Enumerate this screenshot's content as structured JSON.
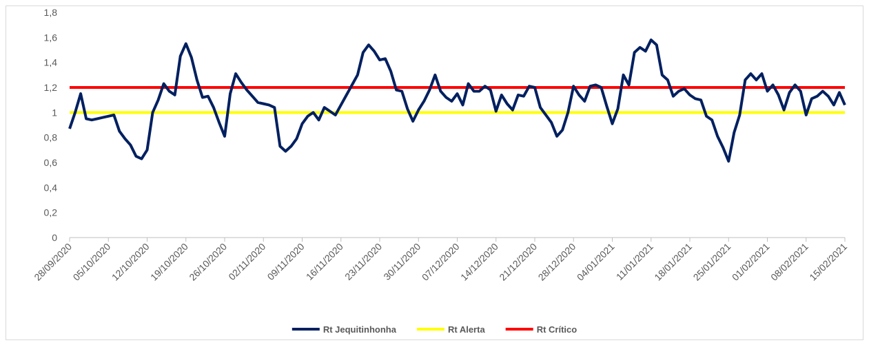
{
  "chart_data": {
    "type": "line",
    "x": [
      "28/09/2020",
      "29/09/2020",
      "30/09/2020",
      "01/10/2020",
      "02/10/2020",
      "03/10/2020",
      "04/10/2020",
      "05/10/2020",
      "06/10/2020",
      "07/10/2020",
      "08/10/2020",
      "09/10/2020",
      "10/10/2020",
      "11/10/2020",
      "12/10/2020",
      "13/10/2020",
      "14/10/2020",
      "15/10/2020",
      "16/10/2020",
      "17/10/2020",
      "18/10/2020",
      "19/10/2020",
      "20/10/2020",
      "21/10/2020",
      "22/10/2020",
      "23/10/2020",
      "24/10/2020",
      "25/10/2020",
      "26/10/2020",
      "27/10/2020",
      "28/10/2020",
      "29/10/2020",
      "30/10/2020",
      "31/10/2020",
      "01/11/2020",
      "02/11/2020",
      "03/11/2020",
      "04/11/2020",
      "05/11/2020",
      "06/11/2020",
      "07/11/2020",
      "08/11/2020",
      "09/11/2020",
      "10/11/2020",
      "11/11/2020",
      "12/11/2020",
      "13/11/2020",
      "14/11/2020",
      "15/11/2020",
      "16/11/2020",
      "17/11/2020",
      "18/11/2020",
      "19/11/2020",
      "20/11/2020",
      "21/11/2020",
      "22/11/2020",
      "23/11/2020",
      "24/11/2020",
      "25/11/2020",
      "26/11/2020",
      "27/11/2020",
      "28/11/2020",
      "29/11/2020",
      "30/11/2020",
      "01/12/2020",
      "02/12/2020",
      "03/12/2020",
      "04/12/2020",
      "05/12/2020",
      "06/12/2020",
      "07/12/2020",
      "08/12/2020",
      "09/12/2020",
      "10/12/2020",
      "11/12/2020",
      "12/12/2020",
      "13/12/2020",
      "14/12/2020",
      "15/12/2020",
      "16/12/2020",
      "17/12/2020",
      "18/12/2020",
      "19/12/2020",
      "20/12/2020",
      "21/12/2020",
      "22/12/2020",
      "23/12/2020",
      "24/12/2020",
      "25/12/2020",
      "26/12/2020",
      "27/12/2020",
      "28/12/2020",
      "29/12/2020",
      "30/12/2020",
      "31/12/2020",
      "01/01/2021",
      "02/01/2021",
      "03/01/2021",
      "04/01/2021",
      "05/01/2021",
      "06/01/2021",
      "07/01/2021",
      "08/01/2021",
      "09/01/2021",
      "10/01/2021",
      "11/01/2021",
      "12/01/2021",
      "13/01/2021",
      "14/01/2021",
      "15/01/2021",
      "16/01/2021",
      "17/01/2021",
      "18/01/2021",
      "19/01/2021",
      "20/01/2021",
      "21/01/2021",
      "22/01/2021",
      "23/01/2021",
      "24/01/2021",
      "25/01/2021",
      "26/01/2021",
      "27/01/2021",
      "28/01/2021",
      "29/01/2021",
      "30/01/2021",
      "31/01/2021",
      "01/02/2021",
      "02/02/2021",
      "03/02/2021",
      "04/02/2021",
      "05/02/2021",
      "06/02/2021",
      "07/02/2021",
      "08/02/2021",
      "09/02/2021",
      "10/02/2021",
      "11/02/2021",
      "12/02/2021",
      "13/02/2021",
      "14/02/2021",
      "15/02/2021"
    ],
    "series": [
      {
        "name": "Rt Jequitinhonha",
        "color": "#002060",
        "values": [
          0.87,
          1.0,
          1.15,
          0.95,
          0.94,
          0.95,
          0.96,
          0.97,
          0.98,
          0.85,
          0.79,
          0.74,
          0.65,
          0.63,
          0.7,
          1.0,
          1.1,
          1.23,
          1.17,
          1.14,
          1.45,
          1.55,
          1.44,
          1.26,
          1.12,
          1.13,
          1.04,
          0.92,
          0.81,
          1.15,
          1.31,
          1.24,
          1.18,
          1.13,
          1.08,
          1.07,
          1.06,
          1.04,
          0.73,
          0.69,
          0.73,
          0.79,
          0.91,
          0.97,
          1.0,
          0.94,
          1.04,
          1.01,
          0.98,
          1.06,
          1.14,
          1.22,
          1.3,
          1.48,
          1.54,
          1.49,
          1.42,
          1.43,
          1.33,
          1.18,
          1.17,
          1.03,
          0.93,
          1.02,
          1.09,
          1.18,
          1.3,
          1.17,
          1.12,
          1.09,
          1.15,
          1.06,
          1.23,
          1.17,
          1.17,
          1.21,
          1.18,
          1.01,
          1.14,
          1.07,
          1.02,
          1.14,
          1.13,
          1.21,
          1.2,
          1.04,
          0.98,
          0.92,
          0.81,
          0.86,
          1.0,
          1.21,
          1.14,
          1.09,
          1.21,
          1.22,
          1.2,
          1.05,
          0.91,
          1.03,
          1.3,
          1.22,
          1.48,
          1.52,
          1.49,
          1.58,
          1.54,
          1.3,
          1.26,
          1.13,
          1.17,
          1.19,
          1.14,
          1.11,
          1.1,
          0.97,
          0.94,
          0.81,
          0.72,
          0.61,
          0.84,
          0.98,
          1.26,
          1.31,
          1.26,
          1.31,
          1.17,
          1.22,
          1.14,
          1.02,
          1.16,
          1.22,
          1.17,
          0.98,
          1.11,
          1.13,
          1.17,
          1.13,
          1.06,
          1.16,
          1.06
        ]
      }
    ],
    "reference_lines": [
      {
        "name": "Rt Alerta",
        "color": "#ffff00",
        "value": 1
      },
      {
        "name": "Rt Crítico",
        "color": "#ff0000",
        "value": 1.2
      }
    ],
    "xlim": [
      "28/09/2020",
      "15/02/2021"
    ],
    "xticks": [
      "28/09/2020",
      "05/10/2020",
      "12/10/2020",
      "19/10/2020",
      "26/10/2020",
      "02/11/2020",
      "09/11/2020",
      "16/11/2020",
      "23/11/2020",
      "30/11/2020",
      "07/12/2020",
      "14/12/2020",
      "21/12/2020",
      "28/12/2020",
      "04/01/2021",
      "11/01/2021",
      "18/01/2021",
      "25/01/2021",
      "01/02/2021",
      "08/02/2021",
      "15/02/2021"
    ],
    "ylim": [
      0,
      1.8
    ],
    "yticks": [
      0,
      {
        "value": 0.2,
        "label": "0,2"
      },
      {
        "value": 0.4,
        "label": "0,4"
      },
      {
        "value": 0.6,
        "label": "0,6"
      },
      {
        "value": 0.8,
        "label": "0,8"
      },
      1,
      {
        "value": 1.2,
        "label": "1,2"
      },
      {
        "value": 1.4,
        "label": "1,4"
      },
      {
        "value": 1.6,
        "label": "1,6"
      },
      {
        "value": 1.8,
        "label": "1,8"
      }
    ],
    "grid": false,
    "legend": "bottom"
  }
}
